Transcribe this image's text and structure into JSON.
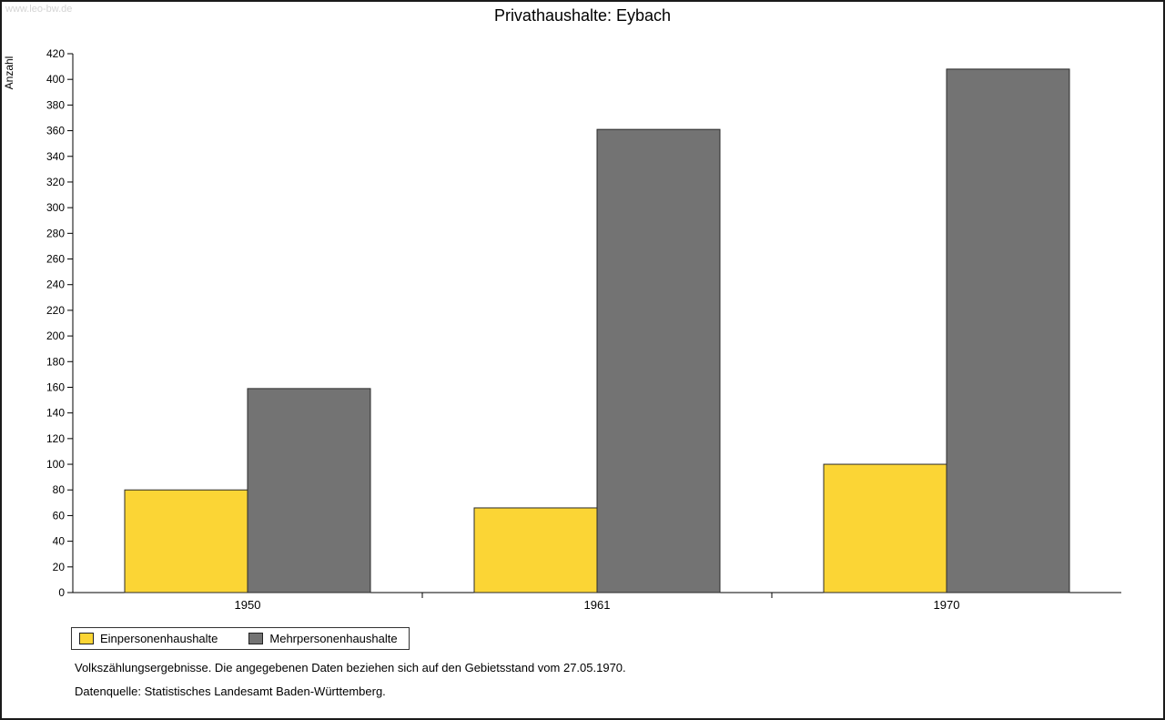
{
  "watermark": "www.leo-bw.de",
  "title": "Privathaushalte: Eybach",
  "chart_data": {
    "type": "bar",
    "title": "Privathaushalte: Eybach",
    "categories": [
      "1950",
      "1961",
      "1970"
    ],
    "series": [
      {
        "name": "Einpersonenhaushalte",
        "color": "#FBD535",
        "values": [
          80,
          66,
          100
        ]
      },
      {
        "name": "Mehrpersonenhaushalte",
        "color": "#737373",
        "values": [
          159,
          361,
          408
        ]
      }
    ],
    "xlabel": "",
    "ylabel": "Anzahl",
    "ylim": [
      0,
      420
    ],
    "ytick_step": 20,
    "grid": false,
    "legend_position": "bottom-left"
  },
  "footnotes": [
    "Volkszählungsergebnisse. Die angegebenen Daten beziehen sich auf den Gebietsstand vom 27.05.1970.",
    "Datenquelle: Statistisches Landesamt Baden-Württemberg."
  ]
}
